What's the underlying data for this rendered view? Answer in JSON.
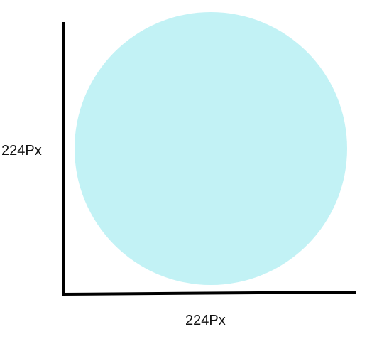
{
  "diagram": {
    "shape": "circle",
    "fill_color": "#c2f2f5",
    "axis_color": "#000000",
    "vertical_label": "224Px",
    "horizontal_label": "224Px"
  }
}
